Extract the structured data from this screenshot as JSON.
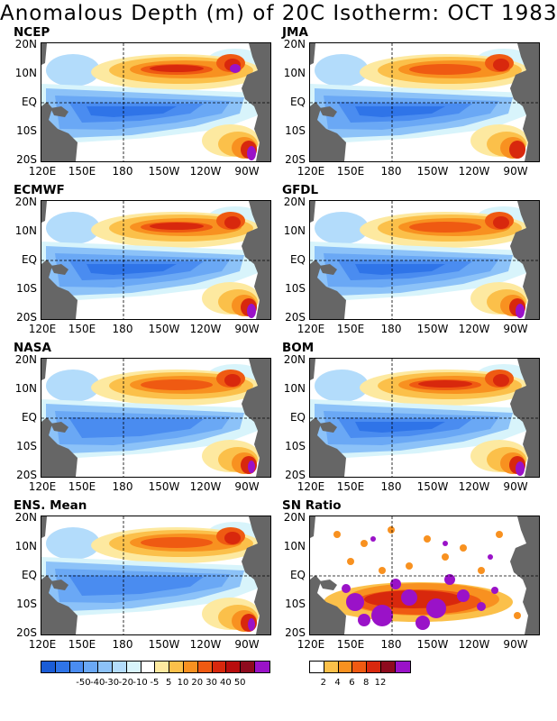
{
  "title": "Anomalous Depth (m) of 20C Isotherm: OCT 1983",
  "y_ticks": [
    "20N",
    "10N",
    "EQ",
    "10S",
    "20S"
  ],
  "x_ticks": [
    "120E",
    "150E",
    "180",
    "150W",
    "120W",
    "90W"
  ],
  "panels": [
    {
      "name": "NCEP",
      "style": "A"
    },
    {
      "name": "JMA",
      "style": "B"
    },
    {
      "name": "ECMWF",
      "style": "C"
    },
    {
      "name": "GFDL",
      "style": "D"
    },
    {
      "name": "NASA",
      "style": "E"
    },
    {
      "name": "BOM",
      "style": "F"
    },
    {
      "name": "ENS. Mean",
      "style": "E"
    },
    {
      "name": "SN Ratio",
      "style": "SN"
    }
  ],
  "colorbar_anomaly": {
    "labels": [
      "-50",
      "-40",
      "-30",
      "-20",
      "-10",
      "-5",
      "5",
      "10",
      "20",
      "30",
      "40",
      "50"
    ],
    "colors": [
      "#1a5cd6",
      "#2f74e8",
      "#4a8cf0",
      "#6aa8f5",
      "#8cc2f8",
      "#b3dcfb",
      "#d8f4fb",
      "#ffffff",
      "#fde9a0",
      "#fbc04a",
      "#f89120",
      "#ef5a12",
      "#d8280d",
      "#b80d0d",
      "#8e0b1e",
      "#9a12c8"
    ]
  },
  "colorbar_sn": {
    "labels": [
      "2",
      "4",
      "6",
      "8",
      "12"
    ],
    "colors": [
      "#ffffff",
      "#fbc04a",
      "#f89120",
      "#ef5a12",
      "#d8280d",
      "#8e0b1e",
      "#9a12c8"
    ]
  }
}
